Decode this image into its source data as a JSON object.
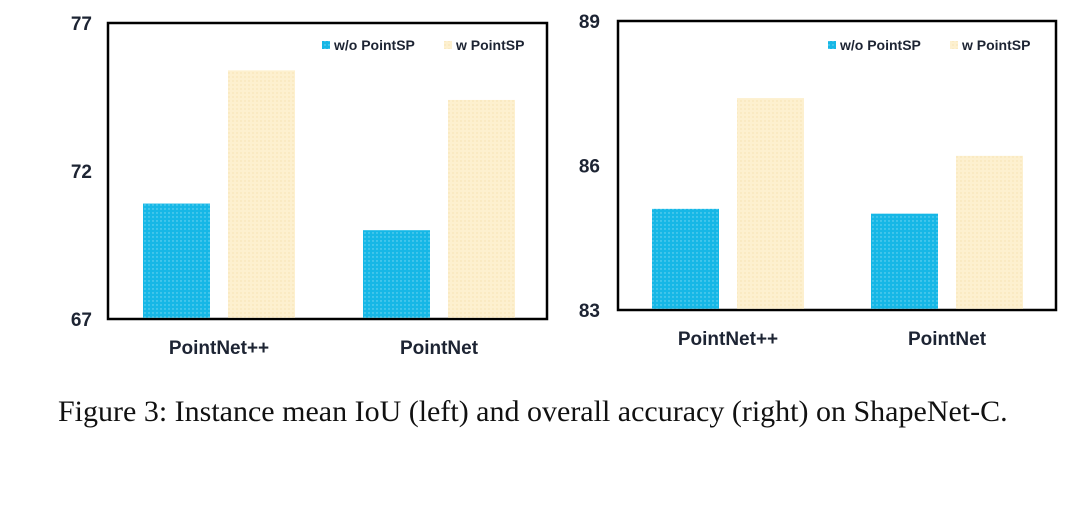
{
  "caption": {
    "text": "Figure 3: Instance mean IoU (left) and overall accuracy (right) on ShapeNet-C."
  },
  "colors": {
    "without": "#16b7e6",
    "with": "#fdf0cf",
    "axis": "#000000",
    "text": "#1d2433"
  },
  "chart_data": [
    {
      "type": "bar",
      "categories": [
        "PointNet++",
        "PointNet"
      ],
      "series": [
        {
          "name": "w/o PointSP",
          "values": [
            70.9,
            70.0
          ]
        },
        {
          "name": "w PointSP",
          "values": [
            75.4,
            74.4
          ]
        }
      ],
      "ylim": [
        67,
        77
      ],
      "yticks": [
        67,
        72,
        77
      ],
      "legend": "top-right",
      "grid": false
    },
    {
      "type": "bar",
      "categories": [
        "PointNet++",
        "PointNet"
      ],
      "series": [
        {
          "name": "w/o PointSP",
          "values": [
            85.1,
            85.0
          ]
        },
        {
          "name": "w PointSP",
          "values": [
            87.4,
            86.2
          ]
        }
      ],
      "ylim": [
        83,
        89
      ],
      "yticks": [
        83,
        86,
        89
      ],
      "legend": "top-right",
      "grid": false
    }
  ]
}
